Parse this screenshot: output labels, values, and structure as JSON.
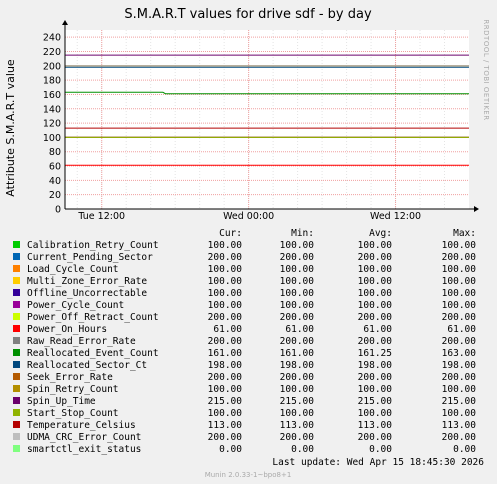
{
  "chart_data": {
    "type": "line",
    "title": "S.M.A.R.T values for drive sdf - by day",
    "ylabel": "Attribute S.M.A.R.T value",
    "side_label": "RRDTOOL / TOBI OETIKER",
    "ylim": [
      0,
      250
    ],
    "yticks": [
      0,
      20,
      40,
      60,
      80,
      100,
      120,
      140,
      160,
      180,
      200,
      220,
      240
    ],
    "xlim": [
      0,
      33
    ],
    "xticks": [
      {
        "label": "Tue 12:00",
        "x": 3
      },
      {
        "label": "Wed 00:00",
        "x": 15
      },
      {
        "label": "Wed 12:00",
        "x": 27
      }
    ],
    "grid": true,
    "columns": [
      "Cur:",
      "Min:",
      "Avg:",
      "Max:"
    ],
    "series": [
      {
        "name": "Calibration_Retry_Count",
        "color": "#00cc00",
        "cur": "100.00",
        "min": "100.00",
        "avg": "100.00",
        "max": "100.00",
        "values": [
          [
            0,
            100
          ],
          [
            33,
            100
          ]
        ]
      },
      {
        "name": "Current_Pending_Sector",
        "color": "#0066b3",
        "cur": "200.00",
        "min": "200.00",
        "avg": "200.00",
        "max": "200.00",
        "values": [
          [
            0,
            200
          ],
          [
            33,
            200
          ]
        ]
      },
      {
        "name": "Load_Cycle_Count",
        "color": "#ff8000",
        "cur": "100.00",
        "min": "100.00",
        "avg": "100.00",
        "max": "100.00",
        "values": [
          [
            0,
            100
          ],
          [
            33,
            100
          ]
        ]
      },
      {
        "name": "Multi_Zone_Error_Rate",
        "color": "#ffcc00",
        "cur": "100.00",
        "min": "100.00",
        "avg": "100.00",
        "max": "100.00",
        "values": [
          [
            0,
            100
          ],
          [
            33,
            100
          ]
        ]
      },
      {
        "name": "Offline_Uncorrectable",
        "color": "#330099",
        "cur": "100.00",
        "min": "100.00",
        "avg": "100.00",
        "max": "100.00",
        "values": [
          [
            0,
            100
          ],
          [
            33,
            100
          ]
        ]
      },
      {
        "name": "Power_Cycle_Count",
        "color": "#990099",
        "cur": "100.00",
        "min": "100.00",
        "avg": "100.00",
        "max": "100.00",
        "values": [
          [
            0,
            100
          ],
          [
            33,
            100
          ]
        ]
      },
      {
        "name": "Power_Off_Retract_Count",
        "color": "#ccff00",
        "cur": "200.00",
        "min": "200.00",
        "avg": "200.00",
        "max": "200.00",
        "values": [
          [
            0,
            200
          ],
          [
            33,
            200
          ]
        ]
      },
      {
        "name": "Power_On_Hours",
        "color": "#ff0000",
        "cur": "61.00",
        "min": "61.00",
        "avg": "61.00",
        "max": "61.00",
        "values": [
          [
            0,
            61
          ],
          [
            33,
            61
          ]
        ]
      },
      {
        "name": "Raw_Read_Error_Rate",
        "color": "#808080",
        "cur": "200.00",
        "min": "200.00",
        "avg": "200.00",
        "max": "200.00",
        "values": [
          [
            0,
            200
          ],
          [
            33,
            200
          ]
        ]
      },
      {
        "name": "Reallocated_Event_Count",
        "color": "#008f00",
        "cur": "161.00",
        "min": "161.00",
        "avg": "161.25",
        "max": "163.00",
        "values": [
          [
            0,
            163
          ],
          [
            8,
            163
          ],
          [
            8.2,
            161
          ],
          [
            33,
            161
          ]
        ]
      },
      {
        "name": "Reallocated_Sector_Ct",
        "color": "#00487d",
        "cur": "198.00",
        "min": "198.00",
        "avg": "198.00",
        "max": "198.00",
        "values": [
          [
            0,
            198
          ],
          [
            33,
            198
          ]
        ]
      },
      {
        "name": "Seek_Error_Rate",
        "color": "#b35a00",
        "cur": "200.00",
        "min": "200.00",
        "avg": "200.00",
        "max": "200.00",
        "values": [
          [
            0,
            200
          ],
          [
            33,
            200
          ]
        ]
      },
      {
        "name": "Spin_Retry_Count",
        "color": "#b38f00",
        "cur": "100.00",
        "min": "100.00",
        "avg": "100.00",
        "max": "100.00",
        "values": [
          [
            0,
            100
          ],
          [
            33,
            100
          ]
        ]
      },
      {
        "name": "Spin_Up_Time",
        "color": "#6b006b",
        "cur": "215.00",
        "min": "215.00",
        "avg": "215.00",
        "max": "215.00",
        "values": [
          [
            0,
            215
          ],
          [
            33,
            215
          ]
        ]
      },
      {
        "name": "Start_Stop_Count",
        "color": "#8fb300",
        "cur": "100.00",
        "min": "100.00",
        "avg": "100.00",
        "max": "100.00",
        "values": [
          [
            0,
            100
          ],
          [
            33,
            100
          ]
        ]
      },
      {
        "name": "Temperature_Celsius",
        "color": "#b30000",
        "cur": "113.00",
        "min": "113.00",
        "avg": "113.00",
        "max": "113.00",
        "values": [
          [
            0,
            113
          ],
          [
            33,
            113
          ]
        ]
      },
      {
        "name": "UDMA_CRC_Error_Count",
        "color": "#bebebe",
        "cur": "200.00",
        "min": "200.00",
        "avg": "200.00",
        "max": "200.00",
        "values": [
          [
            0,
            200
          ],
          [
            33,
            200
          ]
        ]
      },
      {
        "name": "smartctl_exit_status",
        "color": "#80ff80",
        "cur": "0.00",
        "min": "0.00",
        "avg": "0.00",
        "max": "0.00",
        "values": [
          [
            0,
            0
          ],
          [
            33,
            0
          ]
        ]
      }
    ],
    "last_update": "Last update:  Wed Apr 15 18:45:30 2026",
    "footer": "Munin 2.0.33-1~bpo8+1"
  }
}
